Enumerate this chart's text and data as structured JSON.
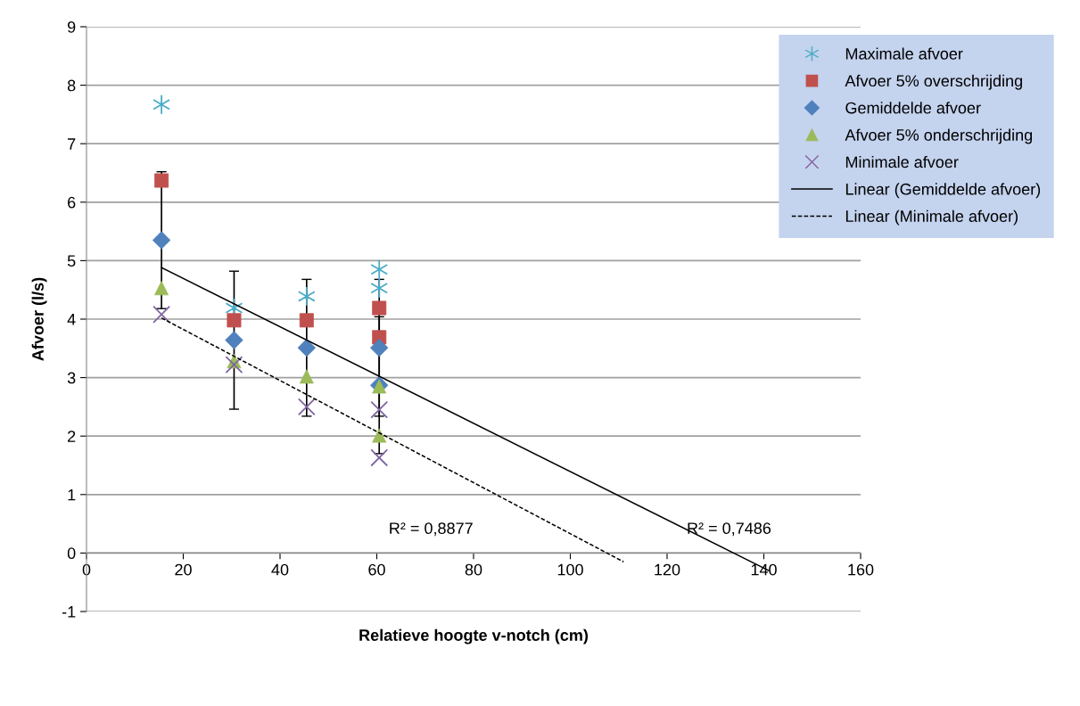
{
  "chart_data": {
    "type": "scatter",
    "xlabel": "Relatieve hoogte v-notch (cm)",
    "ylabel": "Afvoer (l/s)",
    "xlim": [
      0,
      160
    ],
    "xticks": [
      0,
      20,
      40,
      60,
      80,
      100,
      120,
      140,
      160
    ],
    "ylim": [
      -1,
      9
    ],
    "yticks": [
      -1,
      0,
      1,
      2,
      3,
      4,
      5,
      6,
      7,
      8,
      9
    ],
    "grid": "y",
    "legend": "top right",
    "x": [
      15.5,
      30.5,
      45.5,
      60.5,
      60.5
    ],
    "series": [
      {
        "name": "Maximale afvoer",
        "color": "#4bacc6",
        "values": [
          7.67,
          4.19,
          4.39,
          4.85,
          4.53
        ]
      },
      {
        "name": "Afvoer 5% overschrijding",
        "color": "#c0504d",
        "marker": "square",
        "values": [
          6.37,
          3.98,
          3.98,
          4.19,
          3.69
        ]
      },
      {
        "name": "Gemiddelde afvoer",
        "color": "#4f81bd",
        "marker": "diamond",
        "values": [
          5.35,
          3.64,
          3.51,
          3.51,
          2.87
        ],
        "errors": [
          1.17,
          1.18,
          1.17,
          1.17,
          1.17
        ]
      },
      {
        "name": "Afvoer 5% onderschrijding",
        "color": "#9bbb59",
        "marker": "triangle",
        "values": [
          4.53,
          3.28,
          3.02,
          2.85,
          2.01
        ]
      },
      {
        "name": "Minimale afvoer",
        "color": "#8064a2",
        "marker": "cross",
        "values": [
          4.08,
          3.22,
          2.5,
          2.45,
          1.63
        ]
      },
      {
        "name": "Linear (Gemiddelde afvoer)",
        "type": "line",
        "color": "#000000",
        "marker": "none",
        "line_style": "solid",
        "x": [
          15.5,
          141
        ],
        "values": [
          4.88,
          -0.3
        ]
      },
      {
        "name": "Linear (Minimale afvoer)",
        "type": "line",
        "color": "#000000",
        "marker": "none",
        "line_style": "dashed",
        "x": [
          15.5,
          111
        ],
        "values": [
          4.02,
          -0.15
        ]
      }
    ],
    "annotations": [
      "R² = 0,8877",
      "R² = 0,7486"
    ]
  }
}
